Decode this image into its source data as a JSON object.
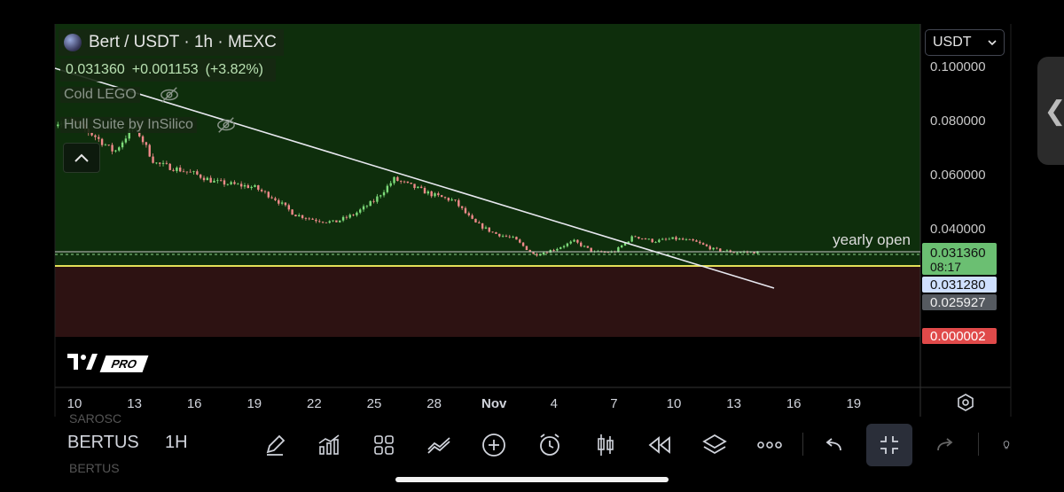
{
  "header": {
    "title": "Bert / USDT · 1h · MEXC",
    "last_price": "0.031360",
    "change": "+0.001153",
    "change_pct": "(+3.82%)",
    "indicators": [
      {
        "label": "Cold LEGO",
        "icon": "eye-off-icon"
      },
      {
        "label": "Hull Suite by InSilico",
        "icon": "eye-off-icon"
      }
    ]
  },
  "currency_select": {
    "value": "USDT"
  },
  "price_tags": {
    "last": "0.031360",
    "countdown": "08:17",
    "level_blue": "0.031280",
    "level_grey": "0.025927",
    "level_red": "0.000002"
  },
  "annotations": {
    "yearly_open": "yearly open"
  },
  "toolbar": {
    "symbol": "BERTUS",
    "timeframe": "1H",
    "ghost_top": "SAROSC",
    "ghost_bottom": "BERTUS",
    "icons": [
      "draw-pen-icon",
      "indicators-icon",
      "layout-grid-icon",
      "compare-icon",
      "add-icon",
      "alert-clock-icon",
      "candles-icon",
      "replay-icon",
      "layers-icon",
      "more-icon",
      "undo-icon",
      "exit-fullscreen-icon",
      "redo-icon",
      "lightbulb-icon"
    ]
  },
  "logo": {
    "text": "PRO"
  },
  "colors": {
    "zone_green": "#0e2e0c",
    "zone_red": "#2d1212",
    "line_yellow": "#e4df58",
    "line_white": "#e8e8f0",
    "candle_up": "#7ddc7a",
    "candle_down": "#f08a8a",
    "tag_green": "#6bbf72",
    "tag_blue": "#cfe0ff",
    "tag_grey": "#555a60",
    "tag_red": "#e04a4a"
  },
  "chart_data": {
    "type": "candlestick",
    "timeframe": "1h",
    "x_tick_labels": [
      "10",
      "13",
      "16",
      "19",
      "22",
      "25",
      "28",
      "Nov",
      "4",
      "7",
      "10",
      "13",
      "16",
      "19"
    ],
    "y_tick_labels": [
      "0.100000",
      "0.080000",
      "0.060000",
      "0.040000"
    ],
    "ylim": [
      0.0,
      0.105
    ],
    "series_close_approx": {
      "x_day_index": [
        0,
        1,
        2,
        3,
        4,
        5,
        6,
        7,
        8,
        9,
        10,
        11,
        12,
        13,
        14,
        15,
        16,
        17,
        18,
        19,
        20,
        21,
        22,
        23,
        24,
        25,
        26,
        27,
        28,
        29,
        30,
        31,
        32,
        33,
        34
      ],
      "close": [
        0.079,
        0.074,
        0.068,
        0.078,
        0.064,
        0.062,
        0.06,
        0.057,
        0.056,
        0.055,
        0.051,
        0.045,
        0.043,
        0.042,
        0.045,
        0.05,
        0.058,
        0.055,
        0.052,
        0.05,
        0.042,
        0.038,
        0.036,
        0.03,
        0.032,
        0.035,
        0.031,
        0.031,
        0.037,
        0.035,
        0.036,
        0.035,
        0.032,
        0.031,
        0.031
      ]
    },
    "levels": {
      "yearly_open": 0.0327,
      "zone_top": 0.0313,
      "zone_bottom": 0.0,
      "last": 0.03136
    }
  }
}
